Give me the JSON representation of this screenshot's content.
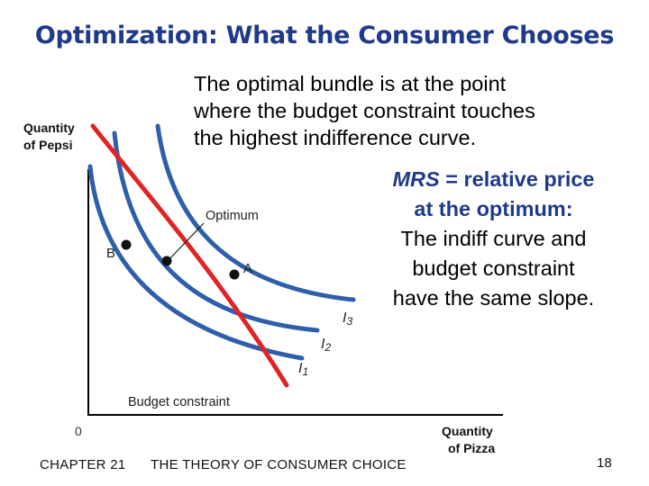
{
  "slide": {
    "title": "Optimization:  What the Consumer Chooses",
    "intro_lines": [
      "The optimal bundle is at the point",
      "where the budget constraint touches",
      "the highest indifference curve."
    ],
    "note": {
      "mrs": "MRS",
      "line1_rest": " = relative price",
      "line2": "at the optimum:",
      "line3": "The indiff curve and",
      "line4": "budget constraint",
      "line5": "have the same slope."
    },
    "footer": {
      "chapter": "CHAPTER 21",
      "course": "THE THEORY OF CONSUMER CHOICE",
      "page": "18"
    }
  },
  "diagram": {
    "y_axis_label_line1": "Quantity",
    "y_axis_label_line2": "of Pepsi",
    "x_axis_label_line1": "Quantity",
    "x_axis_label_line2": "of Pizza",
    "origin_label": "0",
    "optimum_label": "Optimum",
    "point_b_label": "B",
    "point_a_label": "A",
    "budget_label": "Budget constraint",
    "curves": [
      {
        "letter": "I",
        "subscript": "3"
      },
      {
        "letter": "I",
        "subscript": "2"
      },
      {
        "letter": "I",
        "subscript": "1"
      }
    ],
    "colors": {
      "indifference": "#2f5faa",
      "budget": "#e02424",
      "axis": "#000000",
      "text": "#222222"
    }
  }
}
